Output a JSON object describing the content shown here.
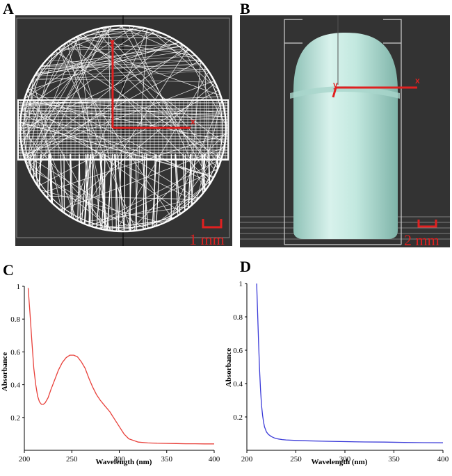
{
  "panels": {
    "a": {
      "letter": "A",
      "axis_x": "x",
      "axis_y": "y",
      "scale_label": "1 mm",
      "background": "#333333",
      "wire_color": "#ffffff",
      "axis_color": "#e02020"
    },
    "b": {
      "letter": "B",
      "axis_x": "x",
      "axis_y": "y",
      "scale_label": "2 mm",
      "background": "#333333",
      "capsule_color": "#bfe6dd",
      "axis_color": "#e02020"
    },
    "c": {
      "letter": "C"
    },
    "d": {
      "letter": "D"
    }
  },
  "chart_data": [
    {
      "type": "line",
      "panel": "C",
      "xlabel": "Wavelength (nm)",
      "ylabel": "Absorbance",
      "xlim": [
        200,
        400
      ],
      "ylim": [
        0,
        1
      ],
      "xticks": [
        200,
        250,
        300,
        350,
        400
      ],
      "yticks": [
        0.2,
        0.4,
        0.6,
        0.8,
        1
      ],
      "ytick_labels": [
        "0.2",
        "0.4",
        "0.6",
        "0.8",
        "1"
      ],
      "grid": false,
      "color": "#e8403a",
      "series": [
        {
          "x": [
            204,
            206,
            208,
            210,
            212,
            214,
            216,
            218,
            220,
            222,
            225,
            228,
            232,
            236,
            240,
            244,
            248,
            252,
            256,
            260,
            264,
            268,
            272,
            276,
            280,
            285,
            290,
            295,
            300,
            305,
            310,
            320,
            330,
            340,
            350,
            360,
            370,
            380,
            390,
            400
          ],
          "y": [
            0.99,
            0.83,
            0.66,
            0.5,
            0.4,
            0.33,
            0.295,
            0.28,
            0.28,
            0.29,
            0.32,
            0.37,
            0.43,
            0.49,
            0.535,
            0.565,
            0.58,
            0.58,
            0.57,
            0.54,
            0.5,
            0.44,
            0.385,
            0.34,
            0.305,
            0.27,
            0.235,
            0.19,
            0.145,
            0.1,
            0.07,
            0.05,
            0.045,
            0.043,
            0.042,
            0.041,
            0.04,
            0.04,
            0.039,
            0.039
          ]
        }
      ]
    },
    {
      "type": "line",
      "panel": "D",
      "xlabel": "Wavelength (nm)",
      "ylabel": "Absorbance",
      "xlim": [
        200,
        400
      ],
      "ylim": [
        0,
        1
      ],
      "xticks": [
        200,
        250,
        300,
        350,
        400
      ],
      "yticks": [
        0.2,
        0.4,
        0.6,
        0.8,
        1
      ],
      "ytick_labels": [
        "0.2",
        "0.4",
        "0.6",
        "0.8",
        "1"
      ],
      "grid": false,
      "color": "#3a3ad8",
      "series": [
        {
          "x": [
            210,
            211,
            212,
            213,
            214,
            215,
            216,
            217,
            218,
            220,
            222,
            225,
            228,
            232,
            236,
            240,
            250,
            260,
            280,
            300,
            320,
            340,
            360,
            380,
            400
          ],
          "y": [
            1.0,
            0.82,
            0.64,
            0.48,
            0.36,
            0.27,
            0.21,
            0.17,
            0.14,
            0.11,
            0.095,
            0.082,
            0.074,
            0.068,
            0.064,
            0.062,
            0.059,
            0.057,
            0.054,
            0.052,
            0.05,
            0.049,
            0.047,
            0.046,
            0.045
          ]
        }
      ]
    }
  ]
}
